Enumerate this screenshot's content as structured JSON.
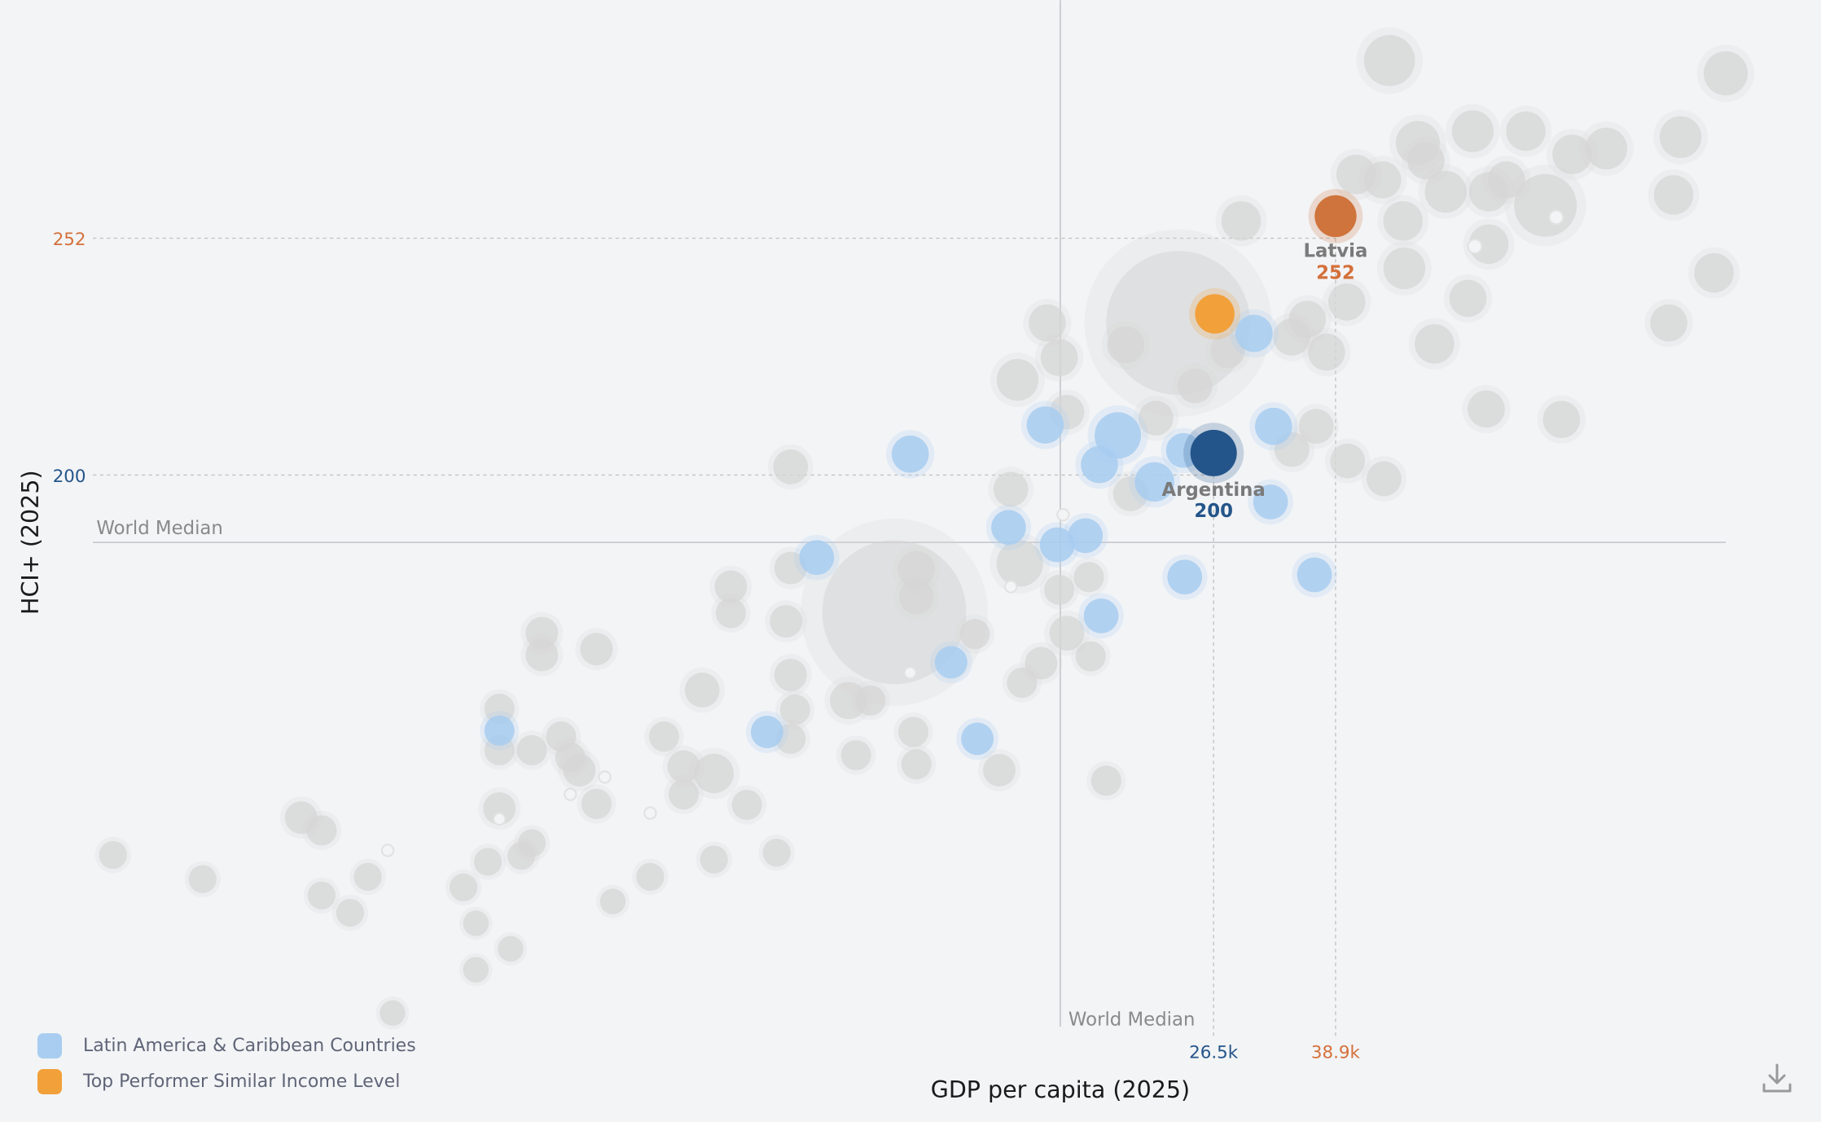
{
  "chart_data": {
    "type": "scatter",
    "xlabel": "GDP per capita (2025)",
    "ylabel": "HCI+ (2025)",
    "x_scale": "log",
    "grid": false,
    "legend_placement": "bottom-left",
    "world_median": {
      "label": "World Median",
      "x": 16.4,
      "y": 185.2
    },
    "x_ticks": [
      {
        "value": 26.5,
        "label": "26.5k",
        "color": "#24558a"
      },
      {
        "value": 38.9,
        "label": "38.9k",
        "color": "#d4703a"
      }
    ],
    "y_ticks": [
      {
        "value": 252,
        "label": "252",
        "color": "#d4703a"
      },
      {
        "value": 200,
        "label": "200",
        "color": "#24558a"
      }
    ],
    "legend": [
      {
        "label": "Latin America & Caribbean Countries",
        "color": "#a8cdf0"
      },
      {
        "label": "Top Performer Similar Income Level",
        "color": "#f2a03a"
      }
    ],
    "colors": {
      "other": "#d6d6d6",
      "latam": "#a8cdf0",
      "focus": "#24558a",
      "top_performer": "#f2a03a",
      "top_performer_focus": "#cf743c"
    },
    "highlights": [
      {
        "name": "Argentina",
        "gdp": 26.5,
        "hci": 200,
        "value_label": "200",
        "size": 20,
        "group": "focus"
      },
      {
        "name": "Latvia",
        "gdp": 38.9,
        "hci": 252,
        "value_label": "252",
        "size": 18,
        "group": "top_performer_focus"
      }
    ],
    "points": [
      [
        23.7,
        233.4,
        62,
        "other"
      ],
      [
        9.7,
        169.9,
        62,
        "other"
      ],
      [
        46.1,
        291.0,
        22,
        "other"
      ],
      [
        132.8,
        288.2,
        19,
        "other"
      ],
      [
        50.4,
        272.9,
        19,
        "other"
      ],
      [
        59.9,
        275.5,
        18,
        "other"
      ],
      [
        70.8,
        275.5,
        17,
        "other"
      ],
      [
        115.2,
        274.2,
        18,
        "other"
      ],
      [
        91.2,
        271.7,
        18,
        "other"
      ],
      [
        81.9,
        270.4,
        17,
        "other"
      ],
      [
        75.3,
        259.2,
        27,
        "other"
      ],
      [
        41.5,
        266.0,
        17,
        "other"
      ],
      [
        55.0,
        262.2,
        18,
        "other"
      ],
      [
        63.0,
        262.2,
        17,
        "other"
      ],
      [
        48.1,
        255.8,
        17,
        "other"
      ],
      [
        112.7,
        261.5,
        17,
        "other"
      ],
      [
        28.9,
        255.8,
        17,
        "other"
      ],
      [
        63.0,
        250.7,
        17,
        "other"
      ],
      [
        128.0,
        244.4,
        17,
        "other"
      ],
      [
        48.3,
        245.4,
        18,
        "other"
      ],
      [
        59.0,
        238.8,
        16,
        "other"
      ],
      [
        40.3,
        238.0,
        16,
        "other"
      ],
      [
        35.6,
        234.2,
        16,
        "other"
      ],
      [
        33.9,
        230.3,
        16,
        "other"
      ],
      [
        37.8,
        227.0,
        16,
        "other"
      ],
      [
        53.1,
        228.8,
        17,
        "other"
      ],
      [
        111.0,
        233.4,
        16,
        "other"
      ],
      [
        27.7,
        227.3,
        15,
        "other"
      ],
      [
        25.0,
        219.6,
        15,
        "other"
      ],
      [
        20.1,
        228.6,
        16,
        "other"
      ],
      [
        15.7,
        233.4,
        16,
        "other"
      ],
      [
        16.3,
        225.8,
        16,
        "other"
      ],
      [
        14.3,
        220.9,
        18,
        "other"
      ],
      [
        16.7,
        213.8,
        15,
        "other"
      ],
      [
        22.1,
        212.5,
        15,
        "other"
      ],
      [
        36.6,
        210.7,
        15,
        "other"
      ],
      [
        33.9,
        205.6,
        15,
        "other"
      ],
      [
        40.4,
        203.1,
        15,
        "other"
      ],
      [
        45.3,
        199.2,
        15,
        "other"
      ],
      [
        62.5,
        214.5,
        16,
        "other"
      ],
      [
        79.2,
        212.2,
        16,
        "other"
      ],
      [
        20.4,
        195.9,
        15,
        "other"
      ],
      [
        14.0,
        196.9,
        15,
        "other"
      ],
      [
        7.0,
        201.8,
        15,
        "other"
      ],
      [
        14.4,
        180.6,
        20,
        "other"
      ],
      [
        17.9,
        177.6,
        13,
        "other"
      ],
      [
        16.3,
        174.8,
        13,
        "other"
      ],
      [
        16.7,
        165.3,
        15,
        "other"
      ],
      [
        18.0,
        160.2,
        13,
        "other"
      ],
      [
        15.4,
        158.7,
        14,
        "other"
      ],
      [
        14.5,
        154.4,
        13,
        "other"
      ],
      [
        12.5,
        165.1,
        13,
        "other"
      ],
      [
        10.4,
        179.3,
        16,
        "other"
      ],
      [
        10.4,
        173.2,
        15,
        "other"
      ],
      [
        7.0,
        179.6,
        14,
        "other"
      ],
      [
        6.9,
        167.9,
        14,
        "other"
      ],
      [
        5.8,
        175.5,
        14,
        "other"
      ],
      [
        5.8,
        169.7,
        13,
        "other"
      ],
      [
        7.0,
        156.1,
        14,
        "other"
      ],
      [
        7.1,
        148.5,
        13,
        "other"
      ],
      [
        8.4,
        150.5,
        16,
        "other"
      ],
      [
        9.0,
        150.5,
        13,
        "other"
      ],
      [
        5.3,
        152.8,
        15,
        "other"
      ],
      [
        10.3,
        143.6,
        13,
        "other"
      ],
      [
        10.4,
        136.5,
        13,
        "other"
      ],
      [
        8.6,
        138.5,
        13,
        "other"
      ],
      [
        7.0,
        142.1,
        13,
        "other"
      ],
      [
        13.5,
        135.2,
        14,
        "other"
      ],
      [
        18.9,
        132.9,
        13,
        "other"
      ],
      [
        3.8,
        161.8,
        14,
        "other"
      ],
      [
        3.2,
        165.3,
        14,
        "other"
      ],
      [
        3.2,
        160.5,
        14,
        "other"
      ],
      [
        4.7,
        142.6,
        13,
        "other"
      ],
      [
        5.5,
        134.5,
        17,
        "other"
      ],
      [
        5.0,
        136.0,
        14,
        "other"
      ],
      [
        6.1,
        127.6,
        13,
        "other"
      ],
      [
        5.0,
        129.9,
        13,
        "other"
      ],
      [
        3.8,
        127.8,
        13,
        "other"
      ],
      [
        3.5,
        138.0,
        13,
        "other"
      ],
      [
        3.6,
        135.2,
        14,
        "other"
      ],
      [
        3.4,
        142.6,
        13,
        "other"
      ],
      [
        3.1,
        139.6,
        13,
        "other"
      ],
      [
        2.8,
        139.6,
        13,
        "other"
      ],
      [
        2.8,
        148.7,
        13,
        "other"
      ],
      [
        2.8,
        126.8,
        14,
        "other"
      ],
      [
        3.1,
        119.2,
        12,
        "other"
      ],
      [
        3.0,
        116.4,
        12,
        "other"
      ],
      [
        2.7,
        115.1,
        12,
        "other"
      ],
      [
        2.5,
        109.5,
        12,
        "other"
      ],
      [
        2.6,
        101.6,
        11,
        "other"
      ],
      [
        2.9,
        96.0,
        11,
        "other"
      ],
      [
        2.6,
        91.4,
        11,
        "other"
      ],
      [
        2.0,
        81.9,
        11,
        "other"
      ],
      [
        1.85,
        111.8,
        12,
        "other"
      ],
      [
        1.75,
        103.9,
        12,
        "other"
      ],
      [
        1.6,
        107.7,
        12,
        "other"
      ],
      [
        1.6,
        122.0,
        13,
        "other"
      ],
      [
        1.5,
        124.8,
        14,
        "other"
      ],
      [
        1.1,
        111.3,
        12,
        "other"
      ],
      [
        0.83,
        116.6,
        12,
        "other"
      ],
      [
        4.0,
        106.4,
        11,
        "other"
      ],
      [
        4.5,
        111.8,
        12,
        "other"
      ],
      [
        5.5,
        115.6,
        12,
        "other"
      ],
      [
        6.7,
        117.1,
        12,
        "other"
      ],
      [
        51.7,
        269.0,
        16,
        "other"
      ],
      [
        66.6,
        264.8,
        16,
        "other"
      ],
      [
        45.1,
        264.8,
        16,
        "other"
      ],
      [
        16.5,
        191.3,
        5,
        "hollow"
      ],
      [
        14.0,
        175.5,
        5,
        "hollow"
      ],
      [
        10.2,
        156.6,
        5,
        "hollow"
      ],
      [
        4.5,
        125.8,
        5,
        "hollow"
      ],
      [
        3.5,
        129.9,
        5,
        "hollow"
      ],
      [
        3.9,
        133.7,
        5,
        "hollow"
      ],
      [
        1.97,
        117.6,
        5,
        "hollow"
      ],
      [
        2.8,
        124.5,
        5,
        "hollow"
      ],
      [
        60.3,
        250.2,
        6,
        "hollow"
      ],
      [
        77.9,
        256.6,
        6,
        "hollow"
      ],
      [
        30.1,
        231.1,
        16,
        "latam"
      ],
      [
        32.0,
        210.7,
        16,
        "latam"
      ],
      [
        31.7,
        194.1,
        15,
        "latam"
      ],
      [
        36.4,
        178.1,
        15,
        "latam"
      ],
      [
        24.2,
        177.6,
        15,
        "latam"
      ],
      [
        24.1,
        205.4,
        15,
        "latam"
      ],
      [
        22.0,
        198.5,
        17,
        "latam"
      ],
      [
        19.6,
        208.7,
        20,
        "latam"
      ],
      [
        18.5,
        202.3,
        16,
        "latam"
      ],
      [
        15.6,
        211.0,
        16,
        "latam"
      ],
      [
        10.2,
        204.6,
        16,
        "latam"
      ],
      [
        13.9,
        188.5,
        15,
        "latam"
      ],
      [
        17.7,
        186.7,
        15,
        "latam"
      ],
      [
        16.2,
        184.7,
        15,
        "latam"
      ],
      [
        18.6,
        169.1,
        15,
        "latam"
      ],
      [
        11.6,
        158.9,
        14,
        "latam"
      ],
      [
        7.6,
        181.9,
        15,
        "latam"
      ],
      [
        6.5,
        143.6,
        14,
        "latam"
      ],
      [
        12.6,
        142.1,
        14,
        "latam"
      ],
      [
        2.8,
        143.9,
        13,
        "latam"
      ],
      [
        26.6,
        235.4,
        17,
        "top_performer"
      ]
    ]
  },
  "toolbar": {
    "download_icon": "download-icon"
  }
}
